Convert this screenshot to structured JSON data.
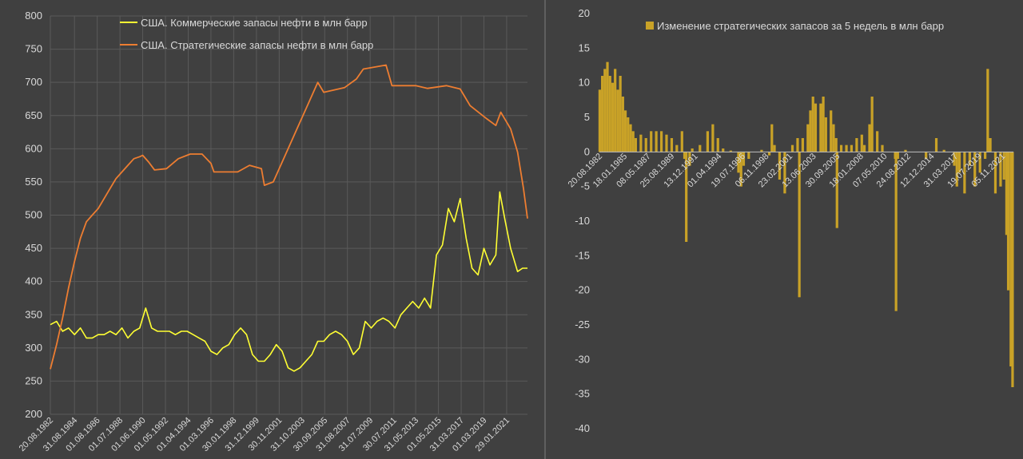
{
  "colors": {
    "background": "#404040",
    "grid": "#5a5a5a",
    "axis_text": "#d9d9d9",
    "commercial": "#ffff33",
    "strategic": "#ed7d31",
    "change_bars": "#c9a227",
    "divider": "#5f5f5f"
  },
  "chart_data": [
    {
      "type": "line",
      "title": "",
      "xlabel": "",
      "ylabel": "",
      "ylim": [
        200,
        800
      ],
      "yticks": [
        200,
        250,
        300,
        350,
        400,
        450,
        500,
        550,
        600,
        650,
        700,
        750,
        800
      ],
      "xlim": [
        "1982-08-20",
        "2022-11-01"
      ],
      "xtick_labels": [
        "20.08.1982",
        "31.08.1984",
        "01.08.1986",
        "01.07.1988",
        "01.06.1990",
        "01.05.1992",
        "01.04.1994",
        "01.03.1996",
        "30.01.1998",
        "31.12.1999",
        "30.11.2001",
        "31.10.2003",
        "30.09.2005",
        "31.08.2007",
        "31.07.2009",
        "30.07.2011",
        "31.05.2013",
        "01.05.2015",
        "31.03.2017",
        "01.03.2019",
        "29.01.2021"
      ],
      "grid": true,
      "legend_position": "top",
      "series": [
        {
          "name": "США. Коммерческие запасы нефти в млн барр",
          "color": "#ffff33",
          "points": [
            [
              "1982-08-20",
              335
            ],
            [
              "1983-03-01",
              340
            ],
            [
              "1983-09-01",
              325
            ],
            [
              "1984-03-01",
              330
            ],
            [
              "1984-09-01",
              320
            ],
            [
              "1985-03-01",
              330
            ],
            [
              "1985-09-01",
              315
            ],
            [
              "1986-03-01",
              315
            ],
            [
              "1986-09-01",
              320
            ],
            [
              "1987-03-01",
              320
            ],
            [
              "1987-09-01",
              325
            ],
            [
              "1988-03-01",
              320
            ],
            [
              "1988-09-01",
              330
            ],
            [
              "1989-03-01",
              315
            ],
            [
              "1989-09-01",
              325
            ],
            [
              "1990-03-01",
              330
            ],
            [
              "1990-09-01",
              360
            ],
            [
              "1991-03-01",
              330
            ],
            [
              "1991-09-01",
              325
            ],
            [
              "1992-03-01",
              325
            ],
            [
              "1992-09-01",
              325
            ],
            [
              "1993-03-01",
              320
            ],
            [
              "1993-09-01",
              325
            ],
            [
              "1994-03-01",
              325
            ],
            [
              "1994-09-01",
              320
            ],
            [
              "1995-03-01",
              315
            ],
            [
              "1995-09-01",
              310
            ],
            [
              "1996-03-01",
              295
            ],
            [
              "1996-09-01",
              290
            ],
            [
              "1997-03-01",
              300
            ],
            [
              "1997-09-01",
              305
            ],
            [
              "1998-03-01",
              320
            ],
            [
              "1998-09-01",
              330
            ],
            [
              "1999-03-01",
              320
            ],
            [
              "1999-09-01",
              290
            ],
            [
              "2000-03-01",
              280
            ],
            [
              "2000-09-01",
              280
            ],
            [
              "2001-03-01",
              290
            ],
            [
              "2001-09-01",
              305
            ],
            [
              "2002-03-01",
              295
            ],
            [
              "2002-09-01",
              270
            ],
            [
              "2003-03-01",
              265
            ],
            [
              "2003-09-01",
              270
            ],
            [
              "2004-03-01",
              280
            ],
            [
              "2004-09-01",
              290
            ],
            [
              "2005-03-01",
              310
            ],
            [
              "2005-09-01",
              310
            ],
            [
              "2006-03-01",
              320
            ],
            [
              "2006-09-01",
              325
            ],
            [
              "2007-03-01",
              320
            ],
            [
              "2007-09-01",
              310
            ],
            [
              "2008-03-01",
              290
            ],
            [
              "2008-09-01",
              300
            ],
            [
              "2009-03-01",
              340
            ],
            [
              "2009-09-01",
              330
            ],
            [
              "2010-03-01",
              340
            ],
            [
              "2010-09-01",
              345
            ],
            [
              "2011-03-01",
              340
            ],
            [
              "2011-09-01",
              330
            ],
            [
              "2012-03-01",
              350
            ],
            [
              "2012-09-01",
              360
            ],
            [
              "2013-03-01",
              370
            ],
            [
              "2013-09-01",
              360
            ],
            [
              "2014-03-01",
              375
            ],
            [
              "2014-09-01",
              360
            ],
            [
              "2015-03-01",
              440
            ],
            [
              "2015-09-01",
              455
            ],
            [
              "2016-03-01",
              510
            ],
            [
              "2016-09-01",
              490
            ],
            [
              "2017-03-01",
              525
            ],
            [
              "2017-09-01",
              465
            ],
            [
              "2018-03-01",
              420
            ],
            [
              "2018-09-01",
              410
            ],
            [
              "2019-03-01",
              450
            ],
            [
              "2019-09-01",
              425
            ],
            [
              "2020-03-01",
              440
            ],
            [
              "2020-07-01",
              535
            ],
            [
              "2020-12-01",
              495
            ],
            [
              "2021-06-01",
              450
            ],
            [
              "2022-01-01",
              415
            ],
            [
              "2022-06-01",
              420
            ],
            [
              "2022-11-01",
              420
            ]
          ]
        },
        {
          "name": "США. Стратегические запасы нефти в млн барр",
          "color": "#ed7d31",
          "points": [
            [
              "1982-08-20",
              268
            ],
            [
              "1983-03-01",
              305
            ],
            [
              "1983-09-01",
              345
            ],
            [
              "1984-03-01",
              390
            ],
            [
              "1984-09-01",
              430
            ],
            [
              "1985-03-01",
              465
            ],
            [
              "1985-09-01",
              490
            ],
            [
              "1986-03-01",
              500
            ],
            [
              "1986-09-01",
              510
            ],
            [
              "1987-03-01",
              525
            ],
            [
              "1987-09-01",
              540
            ],
            [
              "1988-03-01",
              555
            ],
            [
              "1988-09-01",
              565
            ],
            [
              "1989-03-01",
              575
            ],
            [
              "1989-09-01",
              585
            ],
            [
              "1990-03-01",
              588
            ],
            [
              "1990-06-01",
              590
            ],
            [
              "1990-12-01",
              580
            ],
            [
              "1991-06-01",
              568
            ],
            [
              "1992-06-01",
              570
            ],
            [
              "1993-06-01",
              585
            ],
            [
              "1994-06-01",
              592
            ],
            [
              "1995-06-01",
              592
            ],
            [
              "1996-03-01",
              578
            ],
            [
              "1996-06-01",
              565
            ],
            [
              "1998-06-01",
              565
            ],
            [
              "1999-06-01",
              575
            ],
            [
              "2000-06-01",
              570
            ],
            [
              "2000-09-01",
              545
            ],
            [
              "2001-06-01",
              550
            ],
            [
              "2002-06-01",
              590
            ],
            [
              "2003-06-01",
              630
            ],
            [
              "2004-06-01",
              670
            ],
            [
              "2005-03-01",
              700
            ],
            [
              "2005-09-01",
              685
            ],
            [
              "2006-06-01",
              688
            ],
            [
              "2007-06-01",
              692
            ],
            [
              "2008-06-01",
              705
            ],
            [
              "2009-01-01",
              720
            ],
            [
              "2010-12-01",
              726
            ],
            [
              "2011-06-01",
              695
            ],
            [
              "2013-06-01",
              695
            ],
            [
              "2014-06-01",
              691
            ],
            [
              "2016-01-01",
              695
            ],
            [
              "2017-03-01",
              690
            ],
            [
              "2018-01-01",
              665
            ],
            [
              "2019-06-01",
              645
            ],
            [
              "2020-03-01",
              635
            ],
            [
              "2020-08-01",
              655
            ],
            [
              "2021-06-01",
              630
            ],
            [
              "2022-01-01",
              595
            ],
            [
              "2022-07-01",
              540
            ],
            [
              "2022-11-01",
              495
            ]
          ]
        }
      ]
    },
    {
      "type": "bar",
      "title": "",
      "xlabel": "",
      "ylabel": "",
      "ylim": [
        -40,
        20
      ],
      "yticks": [
        -40,
        -35,
        -30,
        -25,
        -20,
        -15,
        -10,
        -5,
        0,
        5,
        10,
        15,
        20
      ],
      "xlim": [
        "1982-08-20",
        "2022-12-01"
      ],
      "xtick_labels": [
        "20.08.1982",
        "18.01.1985",
        "08.05.1987",
        "25.08.1989",
        "13.12.1991",
        "01.04.1994",
        "19.07.1996",
        "06.11.1998",
        "23.02.2001",
        "13.06.2003",
        "30.09.2005",
        "18.01.2008",
        "07.05.2010",
        "24.08.2012",
        "12.12.2014",
        "31.03.2017",
        "19.07.2019",
        "05.11.2021"
      ],
      "grid": true,
      "legend_position": "top",
      "series": [
        {
          "name": "Изменение стратегических запасов за 5 недель в млн барр",
          "color": "#c9a227",
          "points": [
            [
              "1982-09-01",
              9
            ],
            [
              "1982-12-01",
              11
            ],
            [
              "1983-03-01",
              12
            ],
            [
              "1983-06-01",
              13
            ],
            [
              "1983-09-01",
              11
            ],
            [
              "1983-12-01",
              10
            ],
            [
              "1984-03-01",
              12
            ],
            [
              "1984-06-01",
              9
            ],
            [
              "1984-09-01",
              11
            ],
            [
              "1984-12-01",
              8
            ],
            [
              "1985-03-01",
              6
            ],
            [
              "1985-06-01",
              5
            ],
            [
              "1985-09-01",
              4
            ],
            [
              "1985-12-01",
              3
            ],
            [
              "1986-03-01",
              2
            ],
            [
              "1986-09-01",
              2.5
            ],
            [
              "1987-03-01",
              2
            ],
            [
              "1987-09-01",
              3
            ],
            [
              "1988-03-01",
              3
            ],
            [
              "1988-09-01",
              3
            ],
            [
              "1989-03-01",
              2.5
            ],
            [
              "1989-09-01",
              2
            ],
            [
              "1990-03-01",
              1
            ],
            [
              "1990-09-01",
              3
            ],
            [
              "1990-12-01",
              -1
            ],
            [
              "1991-02-01",
              -13
            ],
            [
              "1991-06-01",
              -2
            ],
            [
              "1991-09-01",
              0.5
            ],
            [
              "1992-06-01",
              1
            ],
            [
              "1993-03-01",
              3
            ],
            [
              "1993-09-01",
              4
            ],
            [
              "1994-03-01",
              2
            ],
            [
              "1994-09-01",
              0.5
            ],
            [
              "1995-06-01",
              0.2
            ],
            [
              "1996-03-01",
              -3
            ],
            [
              "1996-06-01",
              -5
            ],
            [
              "1996-09-01",
              -2
            ],
            [
              "1997-03-01",
              -1
            ],
            [
              "1998-06-01",
              0.3
            ],
            [
              "1999-03-01",
              -0.5
            ],
            [
              "1999-06-01",
              4
            ],
            [
              "1999-09-01",
              1
            ],
            [
              "2000-03-01",
              -4
            ],
            [
              "2000-09-01",
              -6
            ],
            [
              "2001-06-01",
              1
            ],
            [
              "2001-12-01",
              2
            ],
            [
              "2002-02-01",
              -21
            ],
            [
              "2002-06-01",
              2
            ],
            [
              "2002-12-01",
              4
            ],
            [
              "2003-03-01",
              6
            ],
            [
              "2003-06-01",
              8
            ],
            [
              "2003-09-01",
              7
            ],
            [
              "2004-03-01",
              7
            ],
            [
              "2004-06-01",
              8
            ],
            [
              "2004-09-01",
              5
            ],
            [
              "2005-03-01",
              6
            ],
            [
              "2005-06-01",
              4
            ],
            [
              "2005-09-01",
              2
            ],
            [
              "2005-10-01",
              -11
            ],
            [
              "2006-03-01",
              1
            ],
            [
              "2006-09-01",
              1
            ],
            [
              "2007-03-01",
              1
            ],
            [
              "2007-09-01",
              2
            ],
            [
              "2008-03-01",
              2.5
            ],
            [
              "2008-06-01",
              1
            ],
            [
              "2008-12-01",
              4
            ],
            [
              "2009-03-01",
              8
            ],
            [
              "2009-09-01",
              3
            ],
            [
              "2010-03-01",
              1
            ],
            [
              "2011-06-01",
              -1
            ],
            [
              "2011-07-01",
              -23
            ],
            [
              "2011-09-01",
              -1
            ],
            [
              "2012-06-01",
              0.3
            ],
            [
              "2014-06-01",
              -1
            ],
            [
              "2015-06-01",
              2
            ],
            [
              "2016-03-01",
              0.3
            ],
            [
              "2017-03-01",
              -2
            ],
            [
              "2017-06-01",
              -5
            ],
            [
              "2017-09-01",
              -3
            ],
            [
              "2018-03-01",
              -6
            ],
            [
              "2018-09-01",
              -2
            ],
            [
              "2019-03-01",
              -5
            ],
            [
              "2019-09-01",
              -3
            ],
            [
              "2020-03-01",
              -1
            ],
            [
              "2020-06-01",
              12
            ],
            [
              "2020-09-01",
              2
            ],
            [
              "2021-03-01",
              -6
            ],
            [
              "2021-09-01",
              -5
            ],
            [
              "2022-01-01",
              -4
            ],
            [
              "2022-04-01",
              -12
            ],
            [
              "2022-06-01",
              -20
            ],
            [
              "2022-09-01",
              -31
            ],
            [
              "2022-11-01",
              -34
            ]
          ]
        }
      ]
    }
  ]
}
